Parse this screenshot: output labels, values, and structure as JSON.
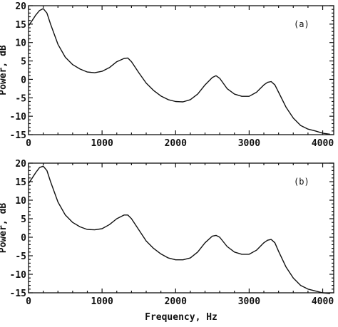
{
  "chart_data": [
    {
      "type": "line",
      "panel_label": "(a)",
      "xlim": [
        0,
        4150
      ],
      "ylim": [
        -15,
        20
      ],
      "x_ticks": [
        "0",
        "1000",
        "2000",
        "3000",
        "4000"
      ],
      "y_ticks": [
        "20",
        "15",
        "10",
        "5",
        "0",
        "-5",
        "-10",
        "-15"
      ],
      "ylabel": "Power, dB",
      "xlabel": "",
      "grid": false,
      "x": [
        0,
        50,
        100,
        150,
        200,
        250,
        300,
        400,
        500,
        600,
        700,
        800,
        900,
        1000,
        1100,
        1200,
        1300,
        1350,
        1400,
        1500,
        1600,
        1700,
        1800,
        1900,
        2000,
        2100,
        2200,
        2300,
        2400,
        2500,
        2550,
        2600,
        2700,
        2800,
        2900,
        3000,
        3100,
        3200,
        3250,
        3300,
        3350,
        3400,
        3500,
        3600,
        3700,
        3800,
        3900,
        4000,
        4100
      ],
      "y": [
        14.5,
        16,
        17.5,
        18.7,
        19.2,
        18,
        15,
        9.5,
        6,
        4,
        2.8,
        2,
        1.8,
        2.2,
        3.2,
        4.8,
        5.7,
        5.8,
        4.8,
        1.8,
        -1,
        -3,
        -4.5,
        -5.5,
        -6,
        -6.1,
        -5.5,
        -4,
        -1.5,
        0.5,
        1,
        0.3,
        -2.5,
        -4,
        -4.6,
        -4.6,
        -3.5,
        -1.5,
        -0.8,
        -0.6,
        -1.5,
        -3.5,
        -7.5,
        -10.5,
        -12.5,
        -13.5,
        -14,
        -14.6,
        -14.9
      ]
    },
    {
      "type": "line",
      "panel_label": "(b)",
      "xlim": [
        0,
        4150
      ],
      "ylim": [
        -15,
        20
      ],
      "x_ticks": [
        "0",
        "1000",
        "2000",
        "3000",
        "4000"
      ],
      "y_ticks": [
        "20",
        "15",
        "10",
        "5",
        "0",
        "-5",
        "-10",
        "-15"
      ],
      "ylabel": "Power, dB",
      "xlabel": "Frequency, Hz",
      "grid": false,
      "x": [
        0,
        50,
        100,
        150,
        200,
        250,
        300,
        400,
        500,
        600,
        700,
        800,
        900,
        1000,
        1100,
        1200,
        1300,
        1350,
        1400,
        1500,
        1600,
        1700,
        1800,
        1900,
        2000,
        2100,
        2200,
        2300,
        2400,
        2500,
        2550,
        2600,
        2700,
        2800,
        2900,
        3000,
        3100,
        3200,
        3250,
        3300,
        3350,
        3400,
        3500,
        3600,
        3700,
        3800,
        3900,
        4000,
        4100
      ],
      "y": [
        14.5,
        16,
        17.5,
        18.8,
        19.2,
        18,
        15,
        9.5,
        6,
        4,
        2.8,
        2.1,
        2,
        2.3,
        3.4,
        5,
        6,
        6,
        5,
        2,
        -1,
        -3,
        -4.5,
        -5.6,
        -6.1,
        -6.1,
        -5.6,
        -4,
        -1.5,
        0.3,
        0.5,
        0,
        -2.5,
        -4,
        -4.6,
        -4.6,
        -3.5,
        -1.5,
        -0.8,
        -0.6,
        -1.5,
        -3.8,
        -8,
        -11,
        -13,
        -14,
        -14.5,
        -15,
        -15.2
      ]
    }
  ]
}
